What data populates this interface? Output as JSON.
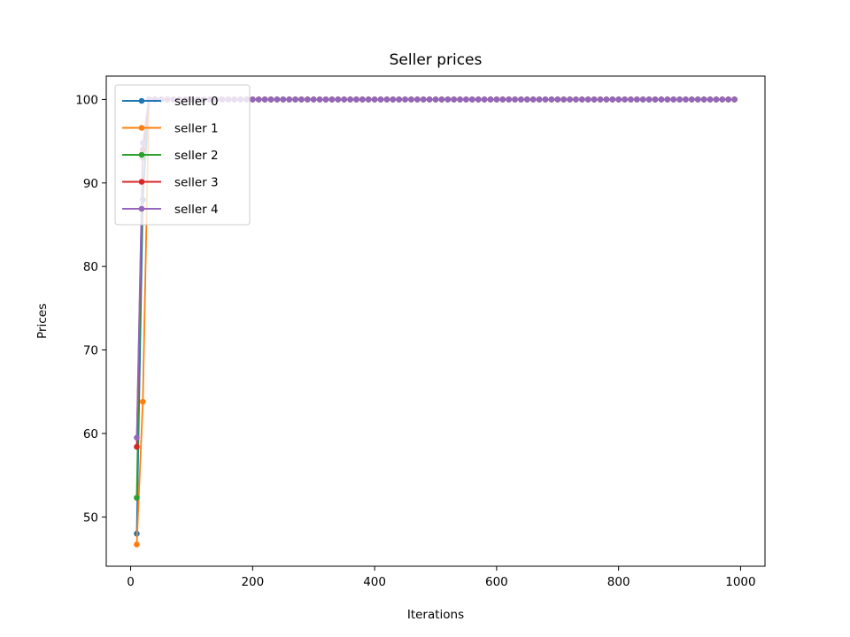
{
  "chart_data": {
    "type": "line",
    "title": "Seller prices",
    "xlabel": "Iterations",
    "ylabel": "Prices",
    "xlim": [
      -40,
      1040
    ],
    "ylim": [
      44.1,
      102.8
    ],
    "xticks": [
      0,
      200,
      400,
      600,
      800,
      1000
    ],
    "yticks": [
      50,
      60,
      70,
      80,
      90,
      100
    ],
    "grid": false,
    "legend_position": "top-left",
    "x_start": 10,
    "x_end": 990,
    "x_step": 10,
    "steady_value": 100,
    "series": [
      {
        "name": "seller 0",
        "color": "#1f77b4",
        "initial": [
          48.0,
          88.0
        ],
        "settle_from": 30
      },
      {
        "name": "seller 1",
        "color": "#ff7f0e",
        "initial": [
          46.7,
          63.8
        ],
        "settle_from": 30
      },
      {
        "name": "seller 2",
        "color": "#2ca02c",
        "initial": [
          52.3,
          93.0
        ],
        "settle_from": 30
      },
      {
        "name": "seller 3",
        "color": "#d62728",
        "initial": [
          58.4,
          94.0
        ],
        "settle_from": 30
      },
      {
        "name": "seller 4",
        "color": "#9467bd",
        "initial": [
          59.5,
          94.8
        ],
        "settle_from": 30
      }
    ]
  }
}
